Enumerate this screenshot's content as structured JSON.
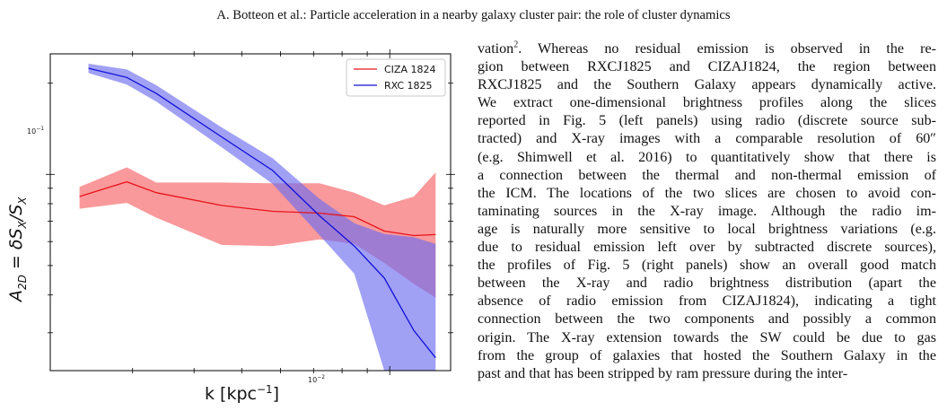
{
  "header": {
    "running_title": "A. Botteon et al.: Particle acceleration in a nearby galaxy cluster pair: the role of cluster dynamics"
  },
  "colors": {
    "cizavalue_line": "#e8141a",
    "cizaband_fill": "#f7777a",
    "rxc_line": "#1010d8",
    "rxc_band_fill": "#6d6df0"
  },
  "chart_data": {
    "type": "line",
    "title": "",
    "xlabel": "k [kpc",
    "xlabel_superscript": "−1",
    "xlabel_close": "]",
    "ylabel": "A",
    "ylabel_sub": "2D",
    "ylabel_rest": " = δS",
    "ylabel_sub2": "X",
    "ylabel_slash": "/S",
    "ylabel_sub3": "X",
    "x_scale": "log",
    "y_scale": "log",
    "xlim": [
      0.00204,
      0.0133
    ],
    "ylim": [
      0.0225,
      0.25
    ],
    "x_tick_label_base": "10",
    "x_tick_label_exp": "−2",
    "y_tick_label_base": "10",
    "y_tick_label_exp": "−1",
    "x_major_tick": 0.01,
    "y_major_tick": 0.1,
    "legend_position": "top-right",
    "grid": false,
    "x": [
      0.00234,
      0.00292,
      0.00335,
      0.00455,
      0.00578,
      0.0072,
      0.00847,
      0.00975,
      0.0112,
      0.0119,
      0.0124
    ],
    "series": [
      {
        "name": "CIZA 1824",
        "color": "#e8141a",
        "x": [
          0.00234,
          0.00292,
          0.00335,
          0.00455,
          0.00578,
          0.0072,
          0.00847,
          0.00975,
          0.0112,
          0.0124
        ],
        "values": [
          0.0845,
          0.0945,
          0.087,
          0.079,
          0.0755,
          0.0745,
          0.0725,
          0.065,
          0.0628,
          0.0633
        ],
        "lower": [
          0.077,
          0.0805,
          0.072,
          0.0585,
          0.058,
          0.061,
          0.059,
          0.051,
          0.0435,
          0.0392
        ],
        "upper": [
          0.091,
          0.1055,
          0.094,
          0.094,
          0.0935,
          0.0935,
          0.087,
          0.079,
          0.0845,
          0.1015
        ]
      },
      {
        "name": "RXC 1825",
        "color": "#1010d8",
        "x": [
          0.00244,
          0.00292,
          0.00335,
          0.00455,
          0.00578,
          0.0072,
          0.00847,
          0.00975,
          0.0112,
          0.0124
        ],
        "values": [
          0.224,
          0.209,
          0.185,
          0.133,
          0.103,
          0.073,
          0.058,
          0.0455,
          0.0305,
          0.0248
        ],
        "lower": [
          0.216,
          0.198,
          0.174,
          0.123,
          0.093,
          0.063,
          0.047,
          0.0225,
          0.0225,
          0.0225
        ],
        "upper": [
          0.232,
          0.222,
          0.197,
          0.143,
          0.113,
          0.083,
          0.069,
          0.0636,
          0.062,
          0.059
        ]
      }
    ]
  },
  "column_text": {
    "l1a": "vation",
    "l1_sup": "2",
    "l1b": ". Whereas no residual emission is observed in the re-",
    "l2": "gion between RXCJ1825 and CIZAJ1824, the region between",
    "l3": "RXCJ1825 and the Southern Galaxy appears dynamically active.",
    "l4": "We extract one-dimensional brightness profiles along the slices",
    "l5": "reported in Fig. 5 (left panels) using radio (discrete source sub-",
    "l6": "tracted) and X-ray images with a comparable resolution of 60″",
    "l7": "(e.g. Shimwell et al. 2016) to quantitatively show that there is",
    "l8": "a connection between the thermal and non-thermal emission of",
    "l9": "the ICM. The locations of the two slices are chosen to avoid con-",
    "l10": "taminating sources in the X-ray image. Although the radio im-",
    "l11": "age is naturally more sensitive to local brightness variations (e.g.",
    "l12": "due to residual emission left over by subtracted discrete sources),",
    "l13": "the profiles of Fig. 5 (right panels) show an overall good match",
    "l14": "between the X-ray and radio brightness distribution (apart the",
    "l15": "absence of radio emission from CIZAJ1824), indicating a tight",
    "l16": "connection between the two components and possibly a common",
    "l17": "origin. The X-ray extension towards the SW could be due to gas",
    "l18": "from the group of galaxies that hosted the Southern Galaxy in the",
    "l19": "past and that has been stripped by ram pressure during the inter-"
  }
}
